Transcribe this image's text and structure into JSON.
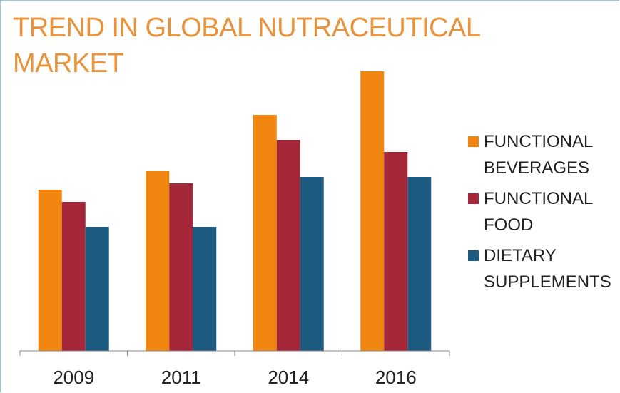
{
  "chart_data": {
    "type": "bar",
    "title": "TREND IN GLOBAL NUTRACEUTICAL MARKET",
    "categories": [
      "2009",
      "2011",
      "2014",
      "2016"
    ],
    "series": [
      {
        "name": "FUNCTIONAL BEVERAGES",
        "color": "#f0860f",
        "values": [
          226,
          252,
          331,
          392
        ]
      },
      {
        "name": "FUNCTIONAL FOOD",
        "color": "#a4283a",
        "values": [
          209,
          235,
          296,
          279
        ]
      },
      {
        "name": "DIETARY SUPPLEMENTS",
        "color": "#1d5a80",
        "values": [
          174,
          174,
          244,
          244
        ]
      }
    ],
    "ylim": [
      0,
      400
    ],
    "legend": "right"
  }
}
